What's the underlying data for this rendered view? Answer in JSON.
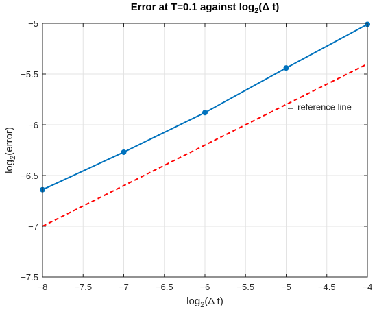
{
  "chart_data": {
    "type": "line",
    "title": {
      "prefix": "Error at T=0.1 against log",
      "subscript": "2",
      "suffix": "(Δ t)"
    },
    "xlabel": {
      "prefix": "log",
      "subscript": "2",
      "suffix": "(Δ t)"
    },
    "ylabel": {
      "prefix": "log",
      "subscript": "2",
      "suffix": "(error)"
    },
    "xlim": [
      -8,
      -4
    ],
    "ylim": [
      -7.5,
      -5
    ],
    "xticks": [
      -8,
      -7.5,
      -7,
      -6.5,
      -6,
      -5.5,
      -5,
      -4.5,
      -4
    ],
    "xtick_labels": [
      "−8",
      "−7.5",
      "−7",
      "−6.5",
      "−6",
      "−5.5",
      "−5",
      "−4.5",
      "−4"
    ],
    "yticks": [
      -7.5,
      -7,
      -6.5,
      -6,
      -5.5,
      -5
    ],
    "ytick_labels": [
      "−7.5",
      "−7",
      "−6.5",
      "−6",
      "−5.5",
      "−5"
    ],
    "grid": true,
    "series": [
      {
        "x": [
          -8,
          -7,
          -6,
          -5,
          -4
        ],
        "y": [
          -6.64,
          -6.27,
          -5.88,
          -5.44,
          -5.01
        ],
        "color": "#0072BD",
        "style": "solid",
        "markers": true
      },
      {
        "x": [
          -8,
          -4
        ],
        "y": [
          -7.0,
          -5.4
        ],
        "color": "#FF0000",
        "style": "dashed",
        "markers": false
      }
    ],
    "annotations": [
      {
        "text": "← reference line",
        "x": -5.0,
        "y": -5.82
      }
    ]
  }
}
